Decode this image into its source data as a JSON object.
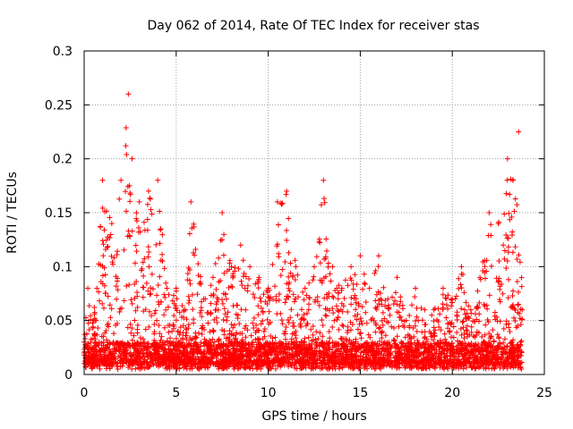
{
  "chart_data": {
    "type": "scatter",
    "title": "Day 062 of 2014, Rate Of TEC Index for receiver stas",
    "xlabel": "GPS time / hours",
    "ylabel": "ROTI / TECUs",
    "xlim": [
      0,
      25
    ],
    "ylim": [
      0,
      0.3
    ],
    "xticks": [
      0,
      5,
      10,
      15,
      20,
      25
    ],
    "yticks": [
      0,
      0.05,
      0.1,
      0.15,
      0.2,
      0.25,
      0.3
    ],
    "xtick_labels": [
      "0",
      "5",
      "10",
      "15",
      "20",
      "25"
    ],
    "ytick_labels": [
      "0",
      "0.05",
      "0.1",
      "0.15",
      "0.2",
      "0.25",
      "0.3"
    ],
    "grid": true,
    "marker": "+",
    "series": [
      {
        "name": "ROTI",
        "color": "#ff0000",
        "points_note": "dense scatter, baseline ~0.01–0.03 TECU over 0–23.7 h",
        "envelope": [
          {
            "x": 0.0,
            "y": 0.03
          },
          {
            "x": 0.2,
            "y": 0.08
          },
          {
            "x": 0.5,
            "y": 0.05
          },
          {
            "x": 1.0,
            "y": 0.18
          },
          {
            "x": 1.5,
            "y": 0.14
          },
          {
            "x": 2.0,
            "y": 0.18
          },
          {
            "x": 2.4,
            "y": 0.26
          },
          {
            "x": 2.6,
            "y": 0.2
          },
          {
            "x": 3.0,
            "y": 0.16
          },
          {
            "x": 3.5,
            "y": 0.17
          },
          {
            "x": 4.0,
            "y": 0.18
          },
          {
            "x": 4.5,
            "y": 0.08
          },
          {
            "x": 5.0,
            "y": 0.08
          },
          {
            "x": 5.5,
            "y": 0.06
          },
          {
            "x": 5.8,
            "y": 0.16
          },
          {
            "x": 6.5,
            "y": 0.07
          },
          {
            "x": 7.0,
            "y": 0.09
          },
          {
            "x": 7.5,
            "y": 0.15
          },
          {
            "x": 8.0,
            "y": 0.1
          },
          {
            "x": 8.5,
            "y": 0.12
          },
          {
            "x": 9.0,
            "y": 0.1
          },
          {
            "x": 9.5,
            "y": 0.09
          },
          {
            "x": 10.0,
            "y": 0.08
          },
          {
            "x": 10.5,
            "y": 0.16
          },
          {
            "x": 11.0,
            "y": 0.17
          },
          {
            "x": 11.5,
            "y": 0.1
          },
          {
            "x": 12.0,
            "y": 0.08
          },
          {
            "x": 12.5,
            "y": 0.1
          },
          {
            "x": 13.0,
            "y": 0.18
          },
          {
            "x": 13.5,
            "y": 0.1
          },
          {
            "x": 14.0,
            "y": 0.08
          },
          {
            "x": 14.5,
            "y": 0.1
          },
          {
            "x": 15.0,
            "y": 0.11
          },
          {
            "x": 15.5,
            "y": 0.08
          },
          {
            "x": 16.0,
            "y": 0.11
          },
          {
            "x": 16.5,
            "y": 0.07
          },
          {
            "x": 17.0,
            "y": 0.09
          },
          {
            "x": 17.5,
            "y": 0.05
          },
          {
            "x": 18.0,
            "y": 0.08
          },
          {
            "x": 18.5,
            "y": 0.06
          },
          {
            "x": 19.0,
            "y": 0.06
          },
          {
            "x": 19.5,
            "y": 0.08
          },
          {
            "x": 20.0,
            "y": 0.07
          },
          {
            "x": 20.5,
            "y": 0.1
          },
          {
            "x": 21.0,
            "y": 0.06
          },
          {
            "x": 21.5,
            "y": 0.09
          },
          {
            "x": 22.0,
            "y": 0.15
          },
          {
            "x": 22.5,
            "y": 0.14
          },
          {
            "x": 23.0,
            "y": 0.2
          },
          {
            "x": 23.3,
            "y": 0.18
          },
          {
            "x": 23.6,
            "y": 0.225
          },
          {
            "x": 23.8,
            "y": 0.06
          }
        ]
      }
    ]
  },
  "colors": {
    "series": "#ff0000",
    "grid": "#a0a0a0",
    "axis": "#000000"
  }
}
